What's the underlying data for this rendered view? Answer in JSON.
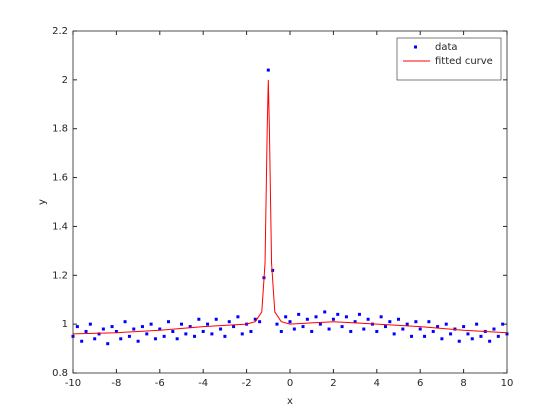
{
  "chart_data": {
    "type": "scatter-fit",
    "xlabel": "x",
    "ylabel": "y",
    "xlim": [
      -10,
      10
    ],
    "ylim": [
      0.8,
      2.2
    ],
    "xticks": [
      -10,
      -8,
      -6,
      -4,
      -2,
      0,
      2,
      4,
      6,
      8,
      10
    ],
    "yticks": [
      0.8,
      1,
      1.2,
      1.4,
      1.6,
      1.8,
      2,
      2.2
    ],
    "legend": "top-right",
    "series": [
      {
        "name": "data",
        "color": "#0000ff",
        "kind": "points",
        "x": [
          -10,
          -9.8,
          -9.6,
          -9.4,
          -9.2,
          -9,
          -8.8,
          -8.6,
          -8.4,
          -8.2,
          -8,
          -7.8,
          -7.6,
          -7.4,
          -7.2,
          -7,
          -6.8,
          -6.6,
          -6.4,
          -6.2,
          -6,
          -5.8,
          -5.6,
          -5.4,
          -5.2,
          -5,
          -4.8,
          -4.6,
          -4.4,
          -4.2,
          -4,
          -3.8,
          -3.6,
          -3.4,
          -3.2,
          -3,
          -2.8,
          -2.6,
          -2.4,
          -2.2,
          -2,
          -1.8,
          -1.6,
          -1.4,
          -1.2,
          -1,
          -0.8,
          -0.6,
          -0.4,
          -0.2,
          0,
          0.2,
          0.4,
          0.6,
          0.8,
          1,
          1.2,
          1.4,
          1.6,
          1.8,
          2,
          2.2,
          2.4,
          2.6,
          2.8,
          3,
          3.2,
          3.4,
          3.6,
          3.8,
          4,
          4.2,
          4.4,
          4.6,
          4.8,
          5,
          5.2,
          5.4,
          5.6,
          5.8,
          6,
          6.2,
          6.4,
          6.6,
          6.8,
          7,
          7.2,
          7.4,
          7.6,
          7.8,
          8,
          8.2,
          8.4,
          8.6,
          8.8,
          9,
          9.2,
          9.4,
          9.6,
          9.8,
          10
        ],
        "values": [
          0.95,
          0.99,
          0.93,
          0.97,
          1.0,
          0.94,
          0.96,
          0.98,
          0.92,
          0.99,
          0.97,
          0.94,
          1.01,
          0.95,
          0.98,
          0.93,
          0.99,
          0.96,
          1.0,
          0.94,
          0.98,
          0.95,
          1.01,
          0.97,
          0.94,
          1.0,
          0.96,
          0.99,
          0.95,
          1.02,
          0.97,
          1.0,
          0.96,
          1.02,
          0.98,
          0.95,
          1.01,
          0.99,
          1.03,
          0.96,
          1.0,
          0.97,
          1.02,
          1.01,
          1.19,
          2.04,
          1.22,
          1.0,
          0.97,
          1.03,
          1.01,
          0.98,
          1.04,
          0.99,
          1.02,
          0.97,
          1.03,
          1.0,
          1.05,
          0.98,
          1.02,
          1.04,
          0.99,
          1.03,
          0.97,
          1.01,
          1.04,
          0.98,
          1.02,
          1.0,
          0.97,
          1.03,
          0.99,
          1.01,
          0.96,
          1.02,
          0.98,
          1.0,
          0.95,
          1.01,
          0.98,
          0.95,
          1.01,
          0.97,
          0.99,
          0.94,
          1.0,
          0.96,
          0.98,
          0.93,
          0.99,
          0.96,
          0.94,
          1.0,
          0.95,
          0.97,
          0.93,
          0.98,
          0.95,
          1.0,
          0.96
        ]
      },
      {
        "name": "fitted curve",
        "color": "#ff0000",
        "kind": "line",
        "x": [
          -10,
          -8,
          -6,
          -4,
          -3,
          -2,
          -1.6,
          -1.3,
          -1.15,
          -1.05,
          -1,
          -0.95,
          -0.85,
          -0.7,
          -0.4,
          0,
          1,
          2,
          3,
          4,
          6,
          8,
          10
        ],
        "values": [
          0.96,
          0.965,
          0.975,
          0.99,
          0.995,
          1.0,
          1.01,
          1.05,
          1.25,
          1.8,
          2.0,
          1.8,
          1.25,
          1.05,
          1.01,
          1.0,
          1.005,
          1.01,
          1.005,
          1.0,
          0.99,
          0.975,
          0.965
        ]
      }
    ]
  }
}
